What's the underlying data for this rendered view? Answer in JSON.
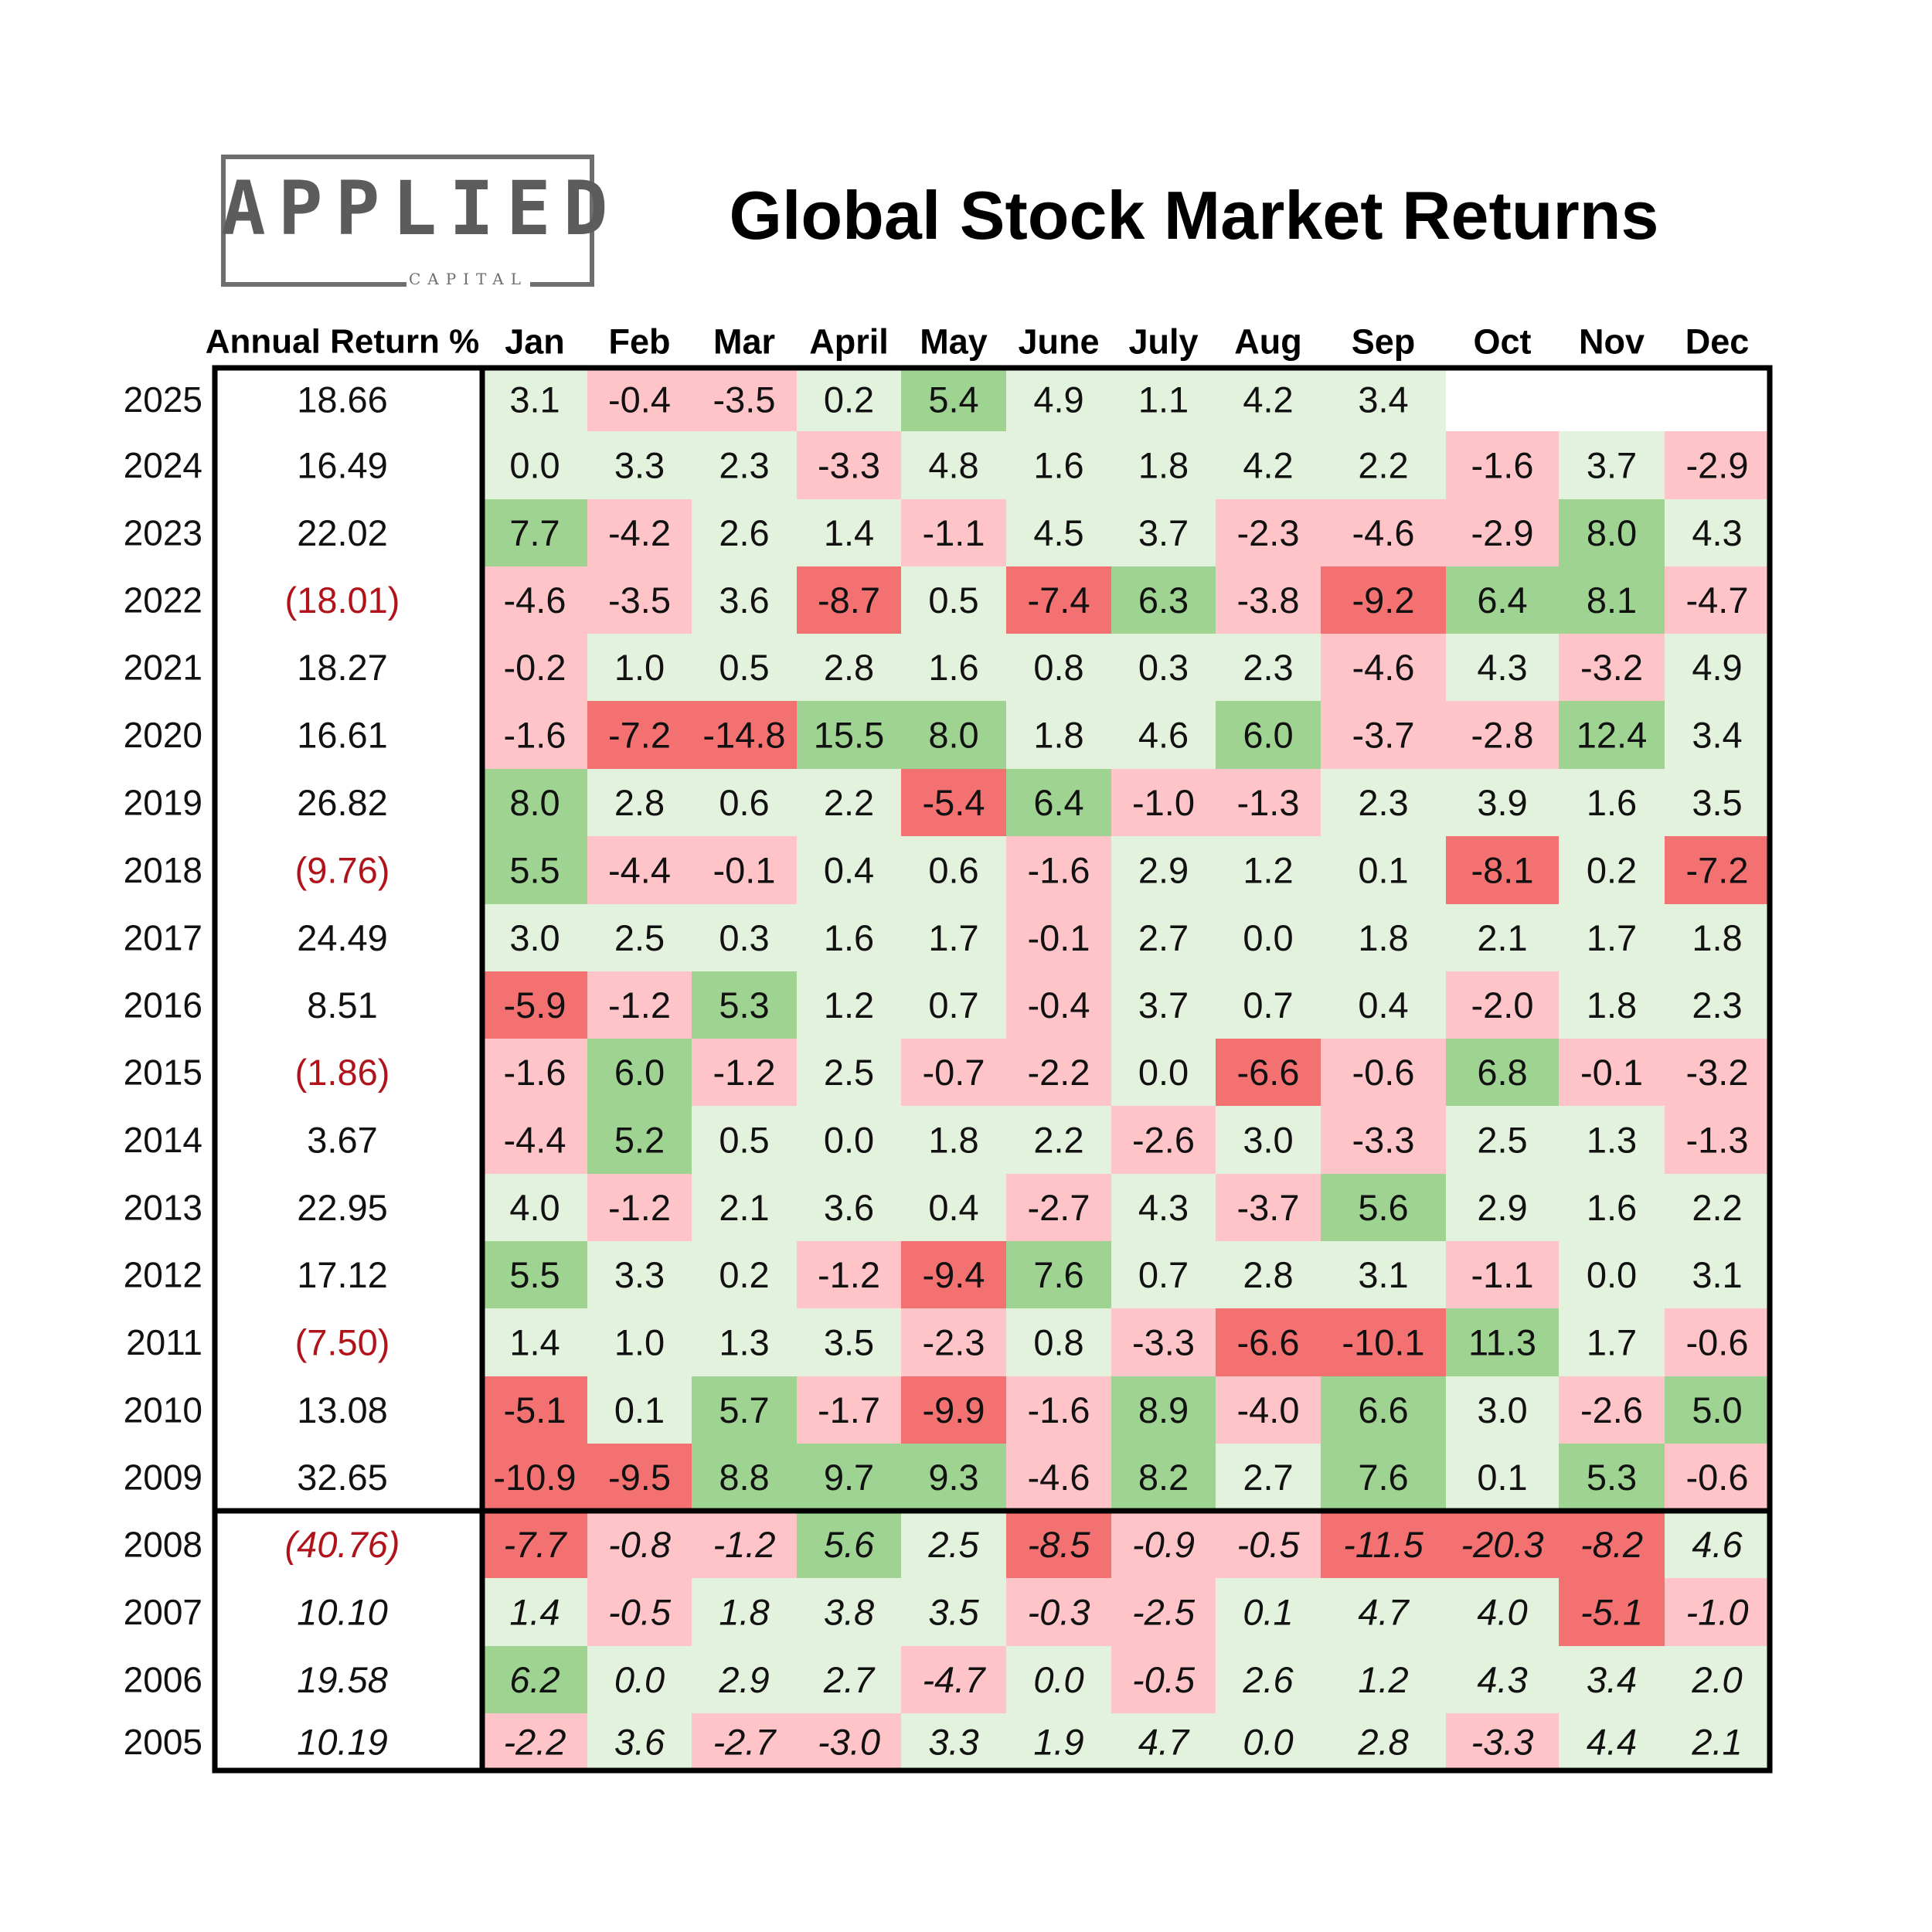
{
  "logo": {
    "wordmark": "APPLIED",
    "subtitle": "CAPITAL"
  },
  "colors": {
    "strong_green": "#9ed392",
    "light_green": "#e3f2dd",
    "light_red": "#ffc4c8",
    "strong_red": "#f47172",
    "negative_annual_text": "#b0141a"
  },
  "chart_data": {
    "type": "heatmap",
    "title": "Global Stock Market Returns",
    "annual_header": "Annual Return %",
    "months": [
      "Jan",
      "Feb",
      "Mar",
      "April",
      "May",
      "June",
      "July",
      "Aug",
      "Sep",
      "Oct",
      "Nov",
      "Dec"
    ],
    "rows": [
      {
        "year": "2025",
        "annual": "18.66",
        "values": [
          "3.1",
          "-0.4",
          "-3.5",
          "0.2",
          "5.4",
          "4.9",
          "1.1",
          "4.2",
          "3.4",
          "",
          "",
          ""
        ]
      },
      {
        "year": "2024",
        "annual": "16.49",
        "values": [
          "0.0",
          "3.3",
          "2.3",
          "-3.3",
          "4.8",
          "1.6",
          "1.8",
          "4.2",
          "2.2",
          "-1.6",
          "3.7",
          "-2.9"
        ]
      },
      {
        "year": "2023",
        "annual": "22.02",
        "values": [
          "7.7",
          "-4.2",
          "2.6",
          "1.4",
          "-1.1",
          "4.5",
          "3.7",
          "-2.3",
          "-4.6",
          "-2.9",
          "8.0",
          "4.3"
        ]
      },
      {
        "year": "2022",
        "annual": "(18.01)",
        "values": [
          "-4.6",
          "-3.5",
          "3.6",
          "-8.7",
          "0.5",
          "-7.4",
          "6.3",
          "-3.8",
          "-9.2",
          "6.4",
          "8.1",
          "-4.7"
        ]
      },
      {
        "year": "2021",
        "annual": "18.27",
        "values": [
          "-0.2",
          "1.0",
          "0.5",
          "2.8",
          "1.6",
          "0.8",
          "0.3",
          "2.3",
          "-4.6",
          "4.3",
          "-3.2",
          "4.9"
        ]
      },
      {
        "year": "2020",
        "annual": "16.61",
        "values": [
          "-1.6",
          "-7.2",
          "-14.8",
          "15.5",
          "8.0",
          "1.8",
          "4.6",
          "6.0",
          "-3.7",
          "-2.8",
          "12.4",
          "3.4"
        ]
      },
      {
        "year": "2019",
        "annual": "26.82",
        "values": [
          "8.0",
          "2.8",
          "0.6",
          "2.2",
          "-5.4",
          "6.4",
          "-1.0",
          "-1.3",
          "2.3",
          "3.9",
          "1.6",
          "3.5"
        ]
      },
      {
        "year": "2018",
        "annual": "(9.76)",
        "values": [
          "5.5",
          "-4.4",
          "-0.1",
          "0.4",
          "0.6",
          "-1.6",
          "2.9",
          "1.2",
          "0.1",
          "-8.1",
          "0.2",
          "-7.2"
        ]
      },
      {
        "year": "2017",
        "annual": "24.49",
        "values": [
          "3.0",
          "2.5",
          "0.3",
          "1.6",
          "1.7",
          "-0.1",
          "2.7",
          "0.0",
          "1.8",
          "2.1",
          "1.7",
          "1.8"
        ]
      },
      {
        "year": "2016",
        "annual": "8.51",
        "values": [
          "-5.9",
          "-1.2",
          "5.3",
          "1.2",
          "0.7",
          "-0.4",
          "3.7",
          "0.7",
          "0.4",
          "-2.0",
          "1.8",
          "2.3"
        ]
      },
      {
        "year": "2015",
        "annual": "(1.86)",
        "values": [
          "-1.6",
          "6.0",
          "-1.2",
          "2.5",
          "-0.7",
          "-2.2",
          "0.0",
          "-6.6",
          "-0.6",
          "6.8",
          "-0.1",
          "-3.2"
        ]
      },
      {
        "year": "2014",
        "annual": "3.67",
        "values": [
          "-4.4",
          "5.2",
          "0.5",
          "0.0",
          "1.8",
          "2.2",
          "-2.6",
          "3.0",
          "-3.3",
          "2.5",
          "1.3",
          "-1.3"
        ]
      },
      {
        "year": "2013",
        "annual": "22.95",
        "values": [
          "4.0",
          "-1.2",
          "2.1",
          "3.6",
          "0.4",
          "-2.7",
          "4.3",
          "-3.7",
          "5.6",
          "2.9",
          "1.6",
          "2.2"
        ]
      },
      {
        "year": "2012",
        "annual": "17.12",
        "values": [
          "5.5",
          "3.3",
          "0.2",
          "-1.2",
          "-9.4",
          "7.6",
          "0.7",
          "2.8",
          "3.1",
          "-1.1",
          "0.0",
          "3.1"
        ]
      },
      {
        "year": "2011",
        "annual": "(7.50)",
        "values": [
          "1.4",
          "1.0",
          "1.3",
          "3.5",
          "-2.3",
          "0.8",
          "-3.3",
          "-6.6",
          "-10.1",
          "11.3",
          "1.7",
          "-0.6"
        ]
      },
      {
        "year": "2010",
        "annual": "13.08",
        "values": [
          "-5.1",
          "0.1",
          "5.7",
          "-1.7",
          "-9.9",
          "-1.6",
          "8.9",
          "-4.0",
          "6.6",
          "3.0",
          "-2.6",
          "5.0"
        ]
      },
      {
        "year": "2009",
        "annual": "32.65",
        "values": [
          "-10.9",
          "-9.5",
          "8.8",
          "9.7",
          "9.3",
          "-4.6",
          "8.2",
          "2.7",
          "7.6",
          "0.1",
          "5.3",
          "-0.6"
        ]
      },
      {
        "year": "2008",
        "annual": "(40.76)",
        "values": [
          "-7.7",
          "-0.8",
          "-1.2",
          "5.6",
          "2.5",
          "-8.5",
          "-0.9",
          "-0.5",
          "-11.5",
          "-20.3",
          "-8.2",
          "4.6"
        ]
      },
      {
        "year": "2007",
        "annual": "10.10",
        "values": [
          "1.4",
          "-0.5",
          "1.8",
          "3.8",
          "3.5",
          "-0.3",
          "-2.5",
          "0.1",
          "4.7",
          "4.0",
          "-5.1",
          "-1.0"
        ]
      },
      {
        "year": "2006",
        "annual": "19.58",
        "values": [
          "6.2",
          "0.0",
          "2.9",
          "2.7",
          "-4.7",
          "0.0",
          "-0.5",
          "2.6",
          "1.2",
          "4.3",
          "3.4",
          "2.0"
        ]
      },
      {
        "year": "2005",
        "annual": "10.19",
        "values": [
          "-2.2",
          "3.6",
          "-2.7",
          "-3.0",
          "3.3",
          "1.9",
          "4.7",
          "0.0",
          "2.8",
          "-3.3",
          "4.4",
          "2.1"
        ]
      }
    ],
    "italic_from_year": "2008"
  }
}
